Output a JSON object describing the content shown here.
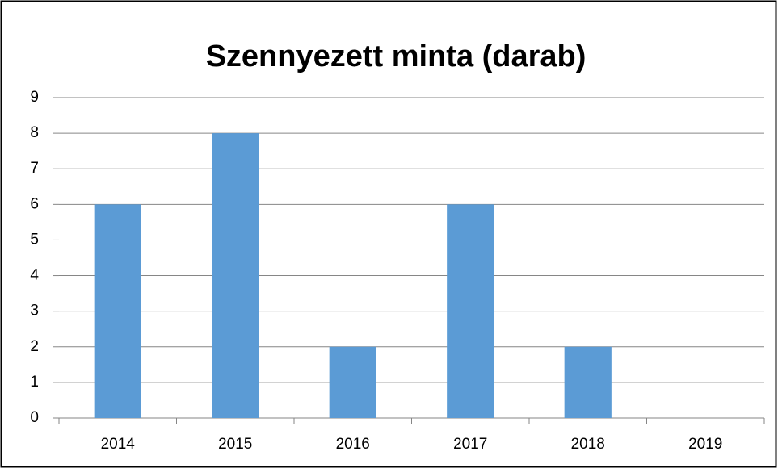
{
  "chart_data": {
    "type": "bar",
    "title": "Szennyezett minta (darab)",
    "categories": [
      "2014",
      "2015",
      "2016",
      "2017",
      "2018",
      "2019"
    ],
    "values": [
      6,
      8,
      2,
      6,
      2,
      0
    ],
    "color": "#5b9bd5",
    "ylim": [
      0,
      9
    ],
    "yticks": [
      0,
      1,
      2,
      3,
      4,
      5,
      6,
      7,
      8,
      9
    ],
    "grid": true
  }
}
